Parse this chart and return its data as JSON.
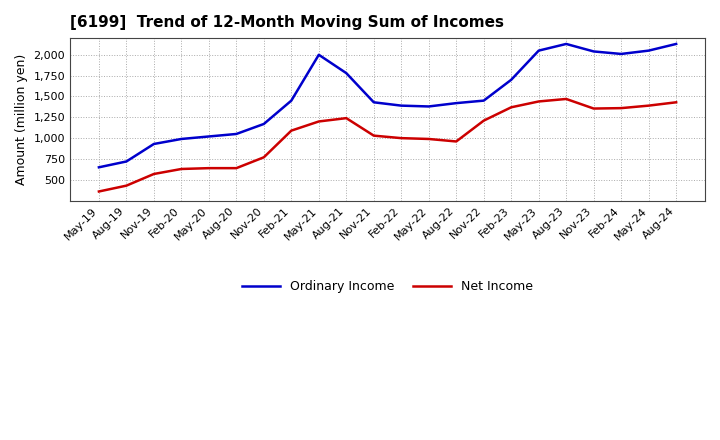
{
  "title": "[6199]  Trend of 12-Month Moving Sum of Incomes",
  "ylabel": "Amount (million yen)",
  "background_color": "#ffffff",
  "plot_bg_color": "#ffffff",
  "grid_color": "#aaaaaa",
  "x_labels": [
    "May-19",
    "Aug-19",
    "Nov-19",
    "Feb-20",
    "May-20",
    "Aug-20",
    "Nov-20",
    "Feb-21",
    "May-21",
    "Aug-21",
    "Nov-21",
    "Feb-22",
    "May-22",
    "Aug-22",
    "Nov-22",
    "Feb-23",
    "May-23",
    "Aug-23",
    "Nov-23",
    "Feb-24",
    "May-24",
    "Aug-24"
  ],
  "ordinary_income": [
    650,
    720,
    930,
    990,
    1020,
    1050,
    1170,
    1450,
    2000,
    1780,
    1430,
    1390,
    1380,
    1420,
    1450,
    1700,
    2050,
    2130,
    2040,
    2010,
    2050,
    2130
  ],
  "net_income": [
    360,
    430,
    570,
    630,
    640,
    640,
    770,
    1090,
    1200,
    1240,
    1030,
    1000,
    990,
    960,
    1210,
    1370,
    1440,
    1470,
    1355,
    1360,
    1390,
    1430
  ],
  "ordinary_color": "#0000cc",
  "net_color": "#cc0000",
  "ylim_min": 250,
  "ylim_max": 2200,
  "yticks": [
    500,
    750,
    1000,
    1250,
    1500,
    1750,
    2000
  ],
  "line_width": 1.8,
  "title_fontsize": 11,
  "legend_labels": [
    "Ordinary Income",
    "Net Income"
  ],
  "tick_fontsize": 8,
  "ylabel_fontsize": 9
}
